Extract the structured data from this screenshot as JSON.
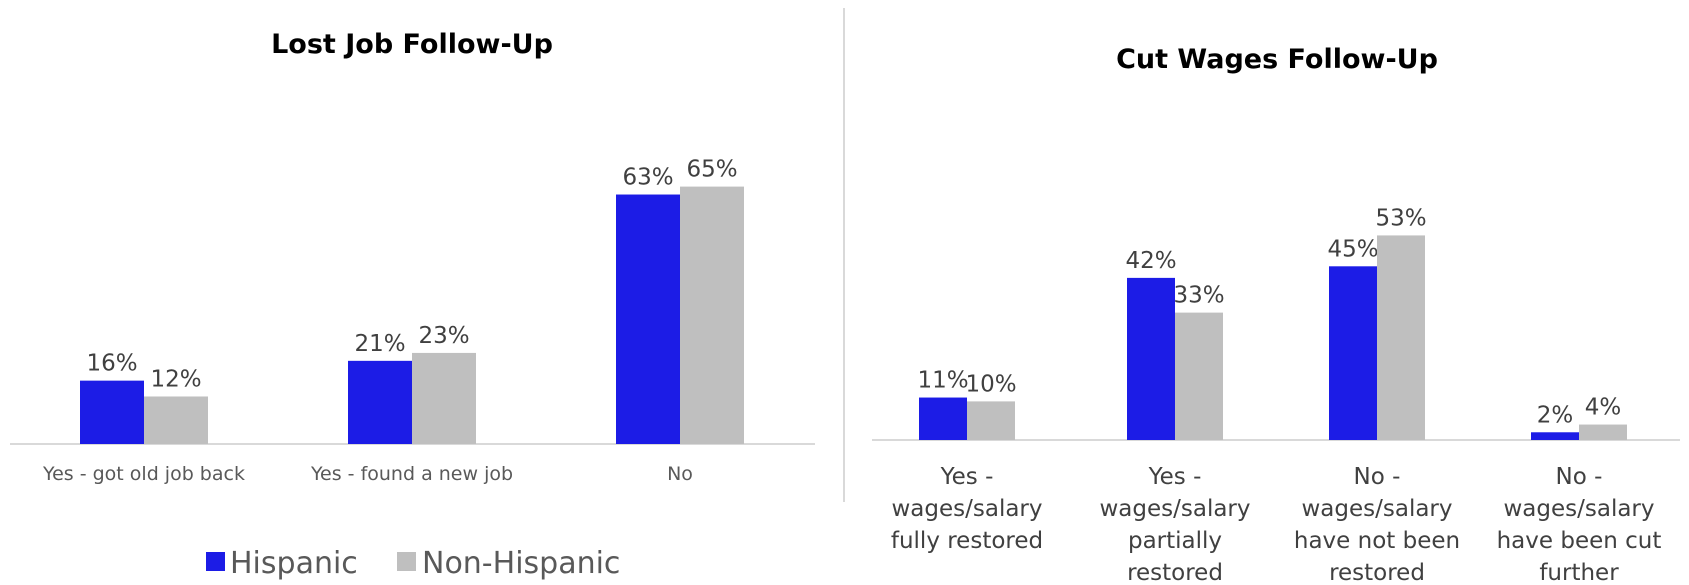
{
  "colors": {
    "hispanic": "#1c1ce6",
    "non_hispanic": "#bfbfbf",
    "axis": "#d9d9d9",
    "divider": "#d9d9d9"
  },
  "legend": {
    "items": [
      {
        "label": "Hispanic",
        "color": "#1c1ce6"
      },
      {
        "label": "Non-Hispanic",
        "color": "#bfbfbf"
      }
    ]
  },
  "chart_data": [
    {
      "type": "bar",
      "title": "Lost Job Follow-Up",
      "categories": [
        "Yes - got old job back",
        "Yes - found a new job",
        "No"
      ],
      "series": [
        {
          "name": "Hispanic",
          "values": [
            16,
            21,
            63
          ],
          "labels": [
            "16%",
            "21%",
            "63%"
          ]
        },
        {
          "name": "Non-Hispanic",
          "values": [
            12,
            23,
            65
          ],
          "labels": [
            "12%",
            "23%",
            "65%"
          ]
        }
      ],
      "unit": "%",
      "ylim": [
        0,
        75
      ],
      "grid": false
    },
    {
      "type": "bar",
      "title": "Cut Wages Follow-Up",
      "categories": [
        [
          "Yes -",
          "wages/salary",
          "fully restored"
        ],
        [
          "Yes -",
          "wages/salary",
          "partially",
          "restored"
        ],
        [
          "No -",
          "wages/salary",
          "have not been",
          "restored"
        ],
        [
          "No -",
          "wages/salary",
          "have been cut",
          "further"
        ]
      ],
      "series": [
        {
          "name": "Hispanic",
          "values": [
            11,
            42,
            45,
            2
          ],
          "labels": [
            "11%",
            "42%",
            "45%",
            "2%"
          ]
        },
        {
          "name": "Non-Hispanic",
          "values": [
            10,
            33,
            53,
            4
          ],
          "labels": [
            "10%",
            "33%",
            "53%",
            "4%"
          ]
        }
      ],
      "unit": "%",
      "ylim": [
        0,
        60
      ],
      "grid": false
    }
  ]
}
